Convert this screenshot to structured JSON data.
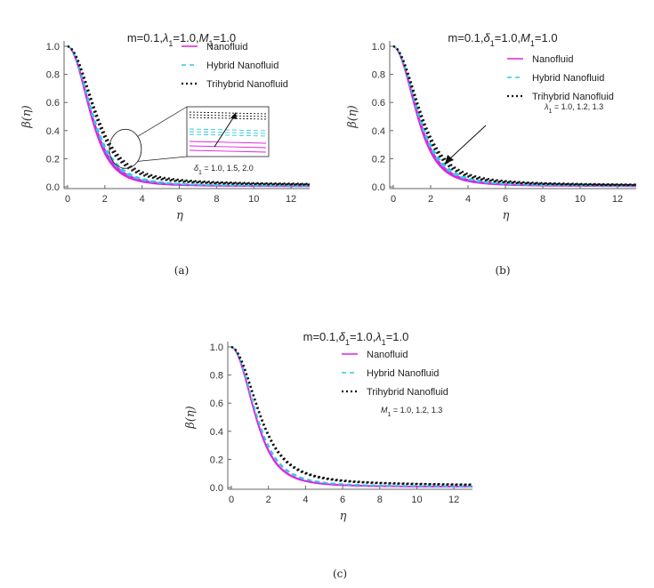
{
  "chart_data": [
    {
      "type": "line",
      "panel_label": "(a)",
      "title": "m=0.1,λ1=1.0,M1=1.0",
      "xlabel": "η",
      "ylabel": "β(η)",
      "xlim": [
        0,
        13
      ],
      "ylim": [
        0,
        1
      ],
      "xticks": [
        "0",
        "2",
        "4",
        "6",
        "8",
        "10",
        "12"
      ],
      "yticks": [
        "0.0",
        "0.2",
        "0.4",
        "0.6",
        "0.8",
        "1.0"
      ],
      "legend": [
        "Nanofluid",
        "Hybrid Nanofluid",
        "Trihybrid Nanofluid"
      ],
      "annotation": "δ1 = 1.0, 1.5, 2.0",
      "zoom_inset": true,
      "series": [
        {
          "name": "Nanofluid",
          "color": "#e020e0",
          "style": "solid",
          "decay": [
            0.42,
            0.44,
            0.46
          ]
        },
        {
          "name": "Hybrid Nanofluid",
          "color": "#30c8e8",
          "style": "dashed",
          "decay": [
            0.39,
            0.405,
            0.42
          ]
        },
        {
          "name": "Trihybrid Nanofluid",
          "color": "#111111",
          "style": "dotted",
          "decay": [
            0.31,
            0.325,
            0.34
          ]
        }
      ]
    },
    {
      "type": "line",
      "panel_label": "(b)",
      "title": "m=0.1,δ1=1.0,M1=1.0",
      "xlabel": "η",
      "ylabel": "β(η)",
      "xlim": [
        0,
        13
      ],
      "ylim": [
        0,
        1
      ],
      "xticks": [
        "0",
        "2",
        "4",
        "6",
        "8",
        "10",
        "12"
      ],
      "yticks": [
        "0.0",
        "0.2",
        "0.4",
        "0.6",
        "0.8",
        "1.0"
      ],
      "legend": [
        "Nanofluid",
        "Hybrid Nanofluid",
        "Trihybrid Nanofluid"
      ],
      "annotation": "λ1 = 1.0, 1.2, 1.3",
      "zoom_inset": false,
      "series": [
        {
          "name": "Nanofluid",
          "color": "#e020e0",
          "style": "solid",
          "decay": [
            0.41,
            0.43,
            0.445
          ]
        },
        {
          "name": "Hybrid Nanofluid",
          "color": "#30c8e8",
          "style": "dashed",
          "decay": [
            0.38,
            0.395,
            0.41
          ]
        },
        {
          "name": "Trihybrid Nanofluid",
          "color": "#111111",
          "style": "dotted",
          "decay": [
            0.33,
            0.345,
            0.36
          ]
        }
      ]
    },
    {
      "type": "line",
      "panel_label": "(c)",
      "title": "m=0.1,δ1=1.0,λ1=1.0",
      "xlabel": "η",
      "ylabel": "β(η)",
      "xlim": [
        0,
        13
      ],
      "ylim": [
        0,
        1
      ],
      "xticks": [
        "0",
        "2",
        "4",
        "6",
        "8",
        "10",
        "12"
      ],
      "yticks": [
        "0.0",
        "0.2",
        "0.4",
        "0.6",
        "0.8",
        "1.0"
      ],
      "legend": [
        "Nanofluid",
        "Hybrid Nanofluid",
        "Trihybrid Nanofluid"
      ],
      "annotation": "M1 = 1.0, 1.2, 1.3",
      "zoom_inset": false,
      "series": [
        {
          "name": "Nanofluid",
          "color": "#e020e0",
          "style": "solid",
          "decay": [
            0.42,
            0.425,
            0.43
          ]
        },
        {
          "name": "Hybrid Nanofluid",
          "color": "#30c8e8",
          "style": "dashed",
          "decay": [
            0.385,
            0.39,
            0.395
          ]
        },
        {
          "name": "Trihybrid Nanofluid",
          "color": "#111111",
          "style": "dotted",
          "decay": [
            0.31,
            0.315,
            0.32
          ]
        }
      ]
    }
  ]
}
